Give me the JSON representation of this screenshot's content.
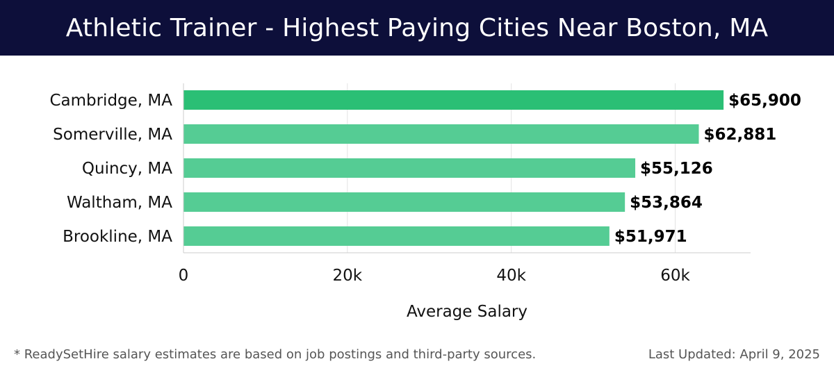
{
  "header": {
    "title": "Athletic Trainer - Highest Paying Cities Near Boston, MA"
  },
  "footer": {
    "note": "* ReadySetHire salary estimates are based on job postings and third-party sources.",
    "updated": "Last Updated: April 9, 2025"
  },
  "colors": {
    "header_bg": "#0d0f3a",
    "bar_top": "#2bbf75",
    "bar_rest": "#55cc94"
  },
  "chart_data": {
    "type": "bar",
    "orientation": "horizontal",
    "categories": [
      "Cambridge, MA",
      "Somerville, MA",
      "Quincy, MA",
      "Waltham, MA",
      "Brookline, MA"
    ],
    "values": [
      65900,
      62881,
      55126,
      53864,
      51971
    ],
    "value_labels": [
      "$65,900",
      "$62,881",
      "$55,126",
      "$53,864",
      "$51,971"
    ],
    "xlabel": "Average Salary",
    "ylabel": "",
    "xlim": [
      0,
      69200
    ],
    "xticks": [
      0,
      20000,
      40000,
      60000
    ],
    "xtick_labels": [
      "0",
      "20k",
      "40k",
      "60k"
    ],
    "grid": "vertical"
  }
}
